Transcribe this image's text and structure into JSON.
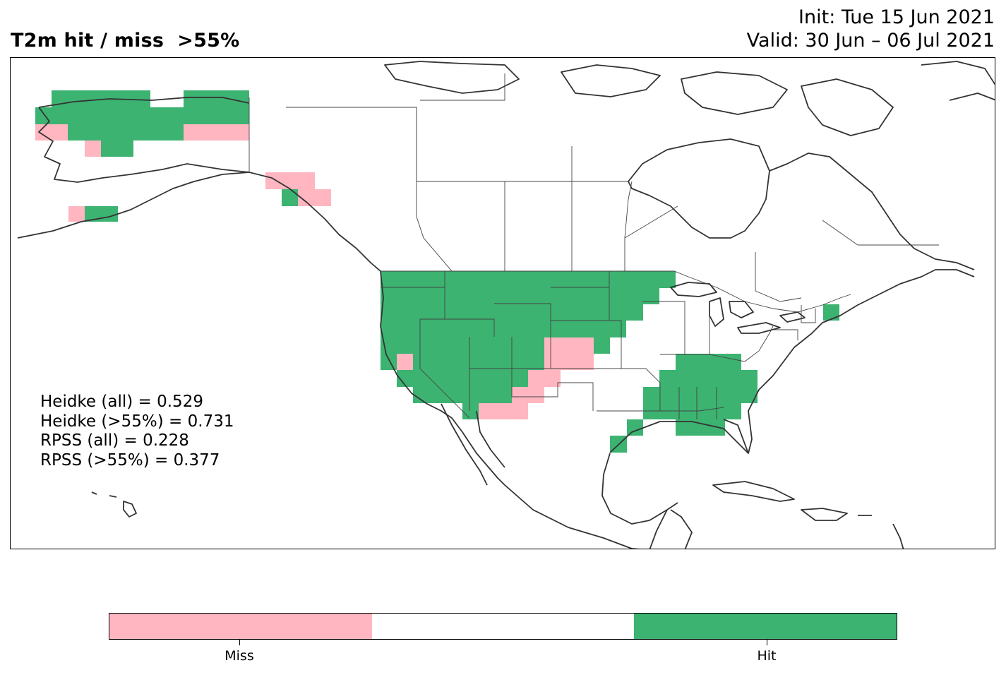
{
  "title": "T2m hit / miss  >55%",
  "init_label": "Init: Tue 15 Jun 2021",
  "valid_label": "Valid: 30 Jun – 06 Jul 2021",
  "stats": {
    "heidke_all": "Heidke (all) = 0.529",
    "heidke_55": "Heidke (>55%) = 0.731",
    "rpss_all": "RPSS (all) = 0.228",
    "rpss_55": "RPSS (>55%) = 0.377"
  },
  "colorbar": {
    "categories": [
      {
        "name": "miss",
        "color": "#ffb6c1",
        "label": "Miss"
      },
      {
        "name": "neutral",
        "color": "#ffffff",
        "label": ""
      },
      {
        "name": "hit",
        "color": "#3cb371",
        "label": "Hit"
      }
    ]
  },
  "colors": {
    "hit": "#3cb371",
    "miss": "#ffb6c1",
    "coast": "#333333",
    "border": "#444444"
  }
}
